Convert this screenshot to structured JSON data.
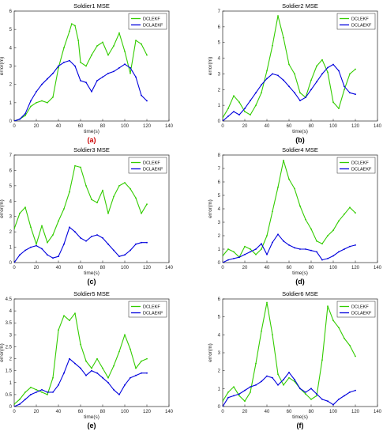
{
  "figure": {
    "title": ""
  },
  "chart_data": [
    {
      "type": "line",
      "panel_label": "(a)",
      "title": "Soldier1 MSE",
      "xlabel": "time(s)",
      "ylabel": "error(m)",
      "xlim": [
        0,
        140
      ],
      "ylim": [
        0,
        6
      ],
      "xticks": [
        0,
        20,
        40,
        60,
        80,
        100,
        120,
        140
      ],
      "yticks": [
        0,
        1,
        2,
        3,
        4,
        5,
        6
      ],
      "legend_position": "top-right",
      "series": [
        {
          "name": "DCLEKF",
          "color": "#33cc00",
          "x": [
            0,
            5,
            10,
            15,
            20,
            25,
            30,
            35,
            40,
            45,
            50,
            52,
            55,
            58,
            60,
            65,
            70,
            75,
            80,
            85,
            90,
            95,
            100,
            105,
            110,
            115,
            120
          ],
          "y": [
            0,
            0.1,
            0.3,
            0.8,
            1.0,
            1.1,
            1.0,
            1.3,
            2.9,
            4.0,
            4.9,
            5.3,
            5.2,
            4.4,
            3.2,
            3.0,
            3.6,
            4.1,
            4.3,
            3.6,
            4.1,
            4.8,
            3.8,
            2.6,
            4.4,
            4.2,
            3.6
          ]
        },
        {
          "name": "DCLAEKF",
          "color": "#0000dd",
          "x": [
            0,
            5,
            10,
            15,
            20,
            25,
            30,
            35,
            40,
            45,
            50,
            55,
            60,
            65,
            70,
            75,
            80,
            85,
            90,
            95,
            100,
            105,
            110,
            115,
            120
          ],
          "y": [
            0,
            0.1,
            0.4,
            1.1,
            1.6,
            2.0,
            2.3,
            2.6,
            3.0,
            3.2,
            3.3,
            3.0,
            2.2,
            2.1,
            1.6,
            2.2,
            2.4,
            2.6,
            2.7,
            2.9,
            3.1,
            2.9,
            2.4,
            1.4,
            1.1
          ]
        }
      ]
    },
    {
      "type": "line",
      "panel_label": "(b)",
      "title": "Soldier2 MSE",
      "xlabel": "time(s)",
      "ylabel": "error(m)",
      "xlim": [
        0,
        140
      ],
      "ylim": [
        0,
        7
      ],
      "xticks": [
        0,
        20,
        40,
        60,
        80,
        100,
        120,
        140
      ],
      "yticks": [
        0,
        1,
        2,
        3,
        4,
        5,
        6,
        7
      ],
      "legend_position": "top-right",
      "series": [
        {
          "name": "DCLEKF",
          "color": "#33cc00",
          "x": [
            0,
            5,
            10,
            15,
            20,
            25,
            30,
            35,
            40,
            45,
            50,
            55,
            60,
            65,
            70,
            75,
            80,
            85,
            90,
            95,
            100,
            105,
            110,
            115,
            120
          ],
          "y": [
            0.2,
            0.8,
            1.6,
            1.2,
            0.6,
            0.4,
            1.0,
            1.8,
            3.2,
            4.8,
            6.7,
            5.3,
            3.6,
            3.0,
            1.8,
            1.5,
            2.6,
            3.5,
            3.9,
            3.1,
            1.2,
            0.8,
            2.0,
            3.0,
            3.3
          ]
        },
        {
          "name": "DCLAEKF",
          "color": "#0000dd",
          "x": [
            0,
            5,
            10,
            15,
            20,
            25,
            30,
            35,
            40,
            45,
            50,
            55,
            60,
            65,
            70,
            75,
            80,
            85,
            90,
            95,
            100,
            105,
            110,
            115,
            120
          ],
          "y": [
            0,
            0.3,
            0.6,
            0.4,
            0.8,
            1.3,
            1.8,
            2.3,
            2.7,
            3.0,
            2.9,
            2.6,
            2.2,
            1.8,
            1.3,
            1.5,
            2.0,
            2.5,
            3.0,
            3.4,
            3.6,
            3.2,
            2.2,
            1.8,
            1.7
          ]
        }
      ]
    },
    {
      "type": "line",
      "panel_label": "(c)",
      "title": "Soldier3 MSE",
      "xlabel": "time(s)",
      "ylabel": "error(m)",
      "xlim": [
        0,
        140
      ],
      "ylim": [
        0,
        7
      ],
      "xticks": [
        0,
        20,
        40,
        60,
        80,
        100,
        120,
        140
      ],
      "yticks": [
        0,
        1,
        2,
        3,
        4,
        5,
        6,
        7
      ],
      "legend_position": "top-right",
      "series": [
        {
          "name": "DCLEKF",
          "color": "#33cc00",
          "x": [
            0,
            5,
            10,
            15,
            20,
            25,
            30,
            35,
            40,
            45,
            50,
            55,
            60,
            65,
            70,
            75,
            80,
            85,
            90,
            95,
            100,
            105,
            110,
            115,
            120
          ],
          "y": [
            2.2,
            3.2,
            3.6,
            2.3,
            1.2,
            2.4,
            1.3,
            1.8,
            2.7,
            3.5,
            4.6,
            6.3,
            6.2,
            5.0,
            4.1,
            3.9,
            4.7,
            3.2,
            4.3,
            5.0,
            5.2,
            4.8,
            4.2,
            3.2,
            3.8
          ]
        },
        {
          "name": "DCLAEKF",
          "color": "#0000dd",
          "x": [
            0,
            5,
            10,
            15,
            20,
            25,
            30,
            35,
            40,
            45,
            50,
            55,
            60,
            65,
            70,
            75,
            80,
            85,
            90,
            95,
            100,
            105,
            110,
            115,
            120
          ],
          "y": [
            0,
            0.5,
            0.8,
            1.0,
            1.1,
            0.9,
            0.5,
            0.3,
            0.4,
            1.2,
            2.3,
            2.0,
            1.6,
            1.4,
            1.7,
            1.8,
            1.6,
            1.2,
            0.8,
            0.4,
            0.5,
            0.8,
            1.2,
            1.3,
            1.3
          ]
        }
      ]
    },
    {
      "type": "line",
      "panel_label": "(d)",
      "title": "Soldier4 MSE",
      "xlabel": "time(s)",
      "ylabel": "error(m)",
      "xlim": [
        0,
        140
      ],
      "ylim": [
        0,
        8
      ],
      "xticks": [
        0,
        20,
        40,
        60,
        80,
        100,
        120,
        140
      ],
      "yticks": [
        0,
        1,
        2,
        3,
        4,
        5,
        6,
        7,
        8
      ],
      "legend_position": "top-right",
      "series": [
        {
          "name": "DCLEKF",
          "color": "#33cc00",
          "x": [
            0,
            5,
            10,
            15,
            20,
            25,
            30,
            35,
            40,
            45,
            50,
            55,
            60,
            65,
            70,
            75,
            80,
            85,
            90,
            95,
            100,
            105,
            110,
            115,
            120
          ],
          "y": [
            0.5,
            1.0,
            0.8,
            0.4,
            1.2,
            1.0,
            0.6,
            1.0,
            2.0,
            3.8,
            5.6,
            7.6,
            6.2,
            5.5,
            4.2,
            3.2,
            2.5,
            1.6,
            1.4,
            2.0,
            2.4,
            3.1,
            3.6,
            4.1,
            3.7
          ]
        },
        {
          "name": "DCLAEKF",
          "color": "#0000dd",
          "x": [
            0,
            5,
            10,
            15,
            20,
            25,
            30,
            35,
            40,
            45,
            50,
            55,
            60,
            65,
            70,
            75,
            80,
            85,
            90,
            95,
            100,
            105,
            110,
            115,
            120
          ],
          "y": [
            0,
            0.2,
            0.3,
            0.4,
            0.6,
            0.8,
            1.0,
            1.4,
            0.6,
            1.5,
            2.1,
            1.6,
            1.3,
            1.1,
            1.0,
            1.0,
            0.9,
            0.8,
            0.2,
            0.3,
            0.5,
            0.8,
            1.0,
            1.2,
            1.3
          ]
        }
      ]
    },
    {
      "type": "line",
      "panel_label": "(e)",
      "title": "Soldier5 MSE",
      "xlabel": "time(s)",
      "ylabel": "error(m)",
      "xlim": [
        0,
        140
      ],
      "ylim": [
        0,
        4.5
      ],
      "xticks": [
        0,
        20,
        40,
        60,
        80,
        100,
        120,
        140
      ],
      "yticks": [
        0,
        0.5,
        1,
        1.5,
        2,
        2.5,
        3,
        3.5,
        4,
        4.5
      ],
      "legend_position": "top-right",
      "series": [
        {
          "name": "DCLEKF",
          "color": "#33cc00",
          "x": [
            0,
            5,
            10,
            15,
            20,
            25,
            30,
            35,
            40,
            45,
            50,
            55,
            60,
            65,
            70,
            75,
            80,
            85,
            90,
            95,
            100,
            105,
            110,
            115,
            120
          ],
          "y": [
            0.1,
            0.3,
            0.6,
            0.8,
            0.7,
            0.6,
            0.5,
            1.2,
            3.2,
            3.8,
            3.6,
            3.9,
            2.6,
            1.9,
            1.6,
            2.0,
            1.6,
            1.2,
            1.7,
            2.3,
            3.0,
            2.4,
            1.6,
            1.9,
            2.0
          ]
        },
        {
          "name": "DCLAEKF",
          "color": "#0000dd",
          "x": [
            0,
            5,
            10,
            15,
            20,
            25,
            30,
            35,
            40,
            45,
            50,
            55,
            60,
            65,
            70,
            75,
            80,
            85,
            90,
            95,
            100,
            105,
            110,
            115,
            120
          ],
          "y": [
            0,
            0.1,
            0.3,
            0.5,
            0.6,
            0.7,
            0.6,
            0.6,
            0.9,
            1.4,
            2.0,
            1.8,
            1.6,
            1.3,
            1.5,
            1.4,
            1.2,
            1.0,
            0.7,
            0.5,
            0.9,
            1.2,
            1.3,
            1.4,
            1.4
          ]
        }
      ]
    },
    {
      "type": "line",
      "panel_label": "(f)",
      "title": "Soldier6 MSE",
      "xlabel": "time(s)",
      "ylabel": "error(m)",
      "xlim": [
        0,
        140
      ],
      "ylim": [
        0,
        6
      ],
      "xticks": [
        0,
        20,
        40,
        60,
        80,
        100,
        120,
        140
      ],
      "yticks": [
        0,
        1,
        2,
        3,
        4,
        5,
        6
      ],
      "legend_position": "top-right",
      "series": [
        {
          "name": "DCLEKF",
          "color": "#33cc00",
          "x": [
            0,
            5,
            10,
            15,
            20,
            25,
            30,
            35,
            40,
            45,
            50,
            55,
            60,
            65,
            70,
            75,
            80,
            85,
            90,
            95,
            100,
            105,
            110,
            115,
            120
          ],
          "y": [
            0.3,
            0.8,
            1.1,
            0.6,
            0.3,
            0.8,
            2.4,
            4.2,
            5.8,
            4.0,
            1.8,
            1.2,
            1.6,
            1.4,
            1.0,
            0.7,
            0.4,
            0.6,
            2.6,
            5.6,
            4.8,
            4.4,
            3.8,
            3.4,
            2.8
          ]
        },
        {
          "name": "DCLAEKF",
          "color": "#0000dd",
          "x": [
            0,
            5,
            10,
            15,
            20,
            25,
            30,
            35,
            40,
            45,
            50,
            55,
            60,
            65,
            70,
            75,
            80,
            85,
            90,
            95,
            100,
            105,
            110,
            115,
            120
          ],
          "y": [
            0,
            0.5,
            0.6,
            0.7,
            0.9,
            1.1,
            1.2,
            1.4,
            1.7,
            1.6,
            1.2,
            1.5,
            1.9,
            1.5,
            1.0,
            0.8,
            1.0,
            0.7,
            0.4,
            0.3,
            0.1,
            0.4,
            0.6,
            0.8,
            0.9
          ]
        }
      ]
    }
  ]
}
